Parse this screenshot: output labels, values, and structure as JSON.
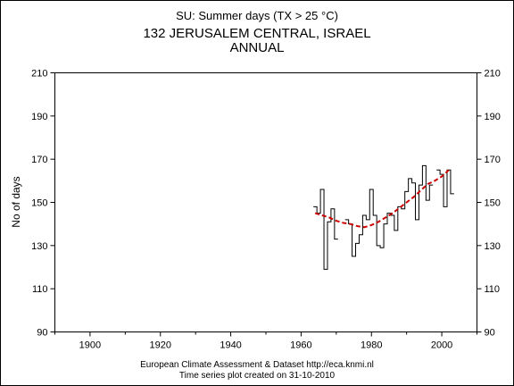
{
  "chart_data": {
    "type": "line",
    "title": "SU: Summer days (TX > 25 °C)",
    "subtitle_lines": [
      "132 JERUSALEM CENTRAL, ISRAEL",
      "ANNUAL"
    ],
    "ylabel": "No of days",
    "xlim": [
      1890,
      2010
    ],
    "ylim": [
      90,
      210
    ],
    "x_ticks": [
      1900,
      1920,
      1940,
      1960,
      1980,
      2000
    ],
    "y_ticks": [
      90,
      110,
      130,
      150,
      170,
      190,
      210
    ],
    "grid": false,
    "series": [
      {
        "kind": "step",
        "color": "#000000",
        "points": [
          [
            1964,
            148
          ],
          [
            1965,
            145
          ],
          [
            1966,
            156
          ],
          [
            1967,
            119
          ],
          [
            1968,
            141
          ],
          [
            1969,
            147
          ],
          [
            1970,
            133
          ],
          [
            1973,
            142
          ],
          [
            1974,
            140
          ],
          [
            1975,
            125
          ],
          [
            1976,
            131
          ],
          [
            1977,
            135
          ],
          [
            1978,
            144
          ],
          [
            1979,
            142
          ],
          [
            1980,
            156
          ],
          [
            1981,
            144
          ],
          [
            1982,
            130
          ],
          [
            1983,
            129
          ],
          [
            1984,
            140
          ],
          [
            1985,
            145
          ],
          [
            1986,
            144
          ],
          [
            1987,
            137
          ],
          [
            1988,
            148
          ],
          [
            1989,
            147
          ],
          [
            1990,
            155
          ],
          [
            1991,
            161
          ],
          [
            1992,
            159
          ],
          [
            1993,
            142
          ],
          [
            1994,
            158
          ],
          [
            1995,
            167
          ],
          [
            1996,
            151
          ],
          [
            1997,
            158
          ],
          [
            1999,
            165
          ],
          [
            2000,
            163
          ],
          [
            2001,
            148
          ],
          [
            2002,
            165
          ],
          [
            2003,
            154
          ]
        ]
      },
      {
        "kind": "smooth-trend",
        "color": "#cc0000",
        "points": [
          [
            1964,
            145
          ],
          [
            1966,
            144
          ],
          [
            1968,
            143
          ],
          [
            1970,
            141.5
          ],
          [
            1972,
            140.5
          ],
          [
            1974,
            140
          ],
          [
            1976,
            139
          ],
          [
            1978,
            138.5
          ],
          [
            1980,
            139.5
          ],
          [
            1982,
            141
          ],
          [
            1984,
            143
          ],
          [
            1986,
            145
          ],
          [
            1988,
            147.5
          ],
          [
            1990,
            150
          ],
          [
            1992,
            152.5
          ],
          [
            1994,
            155.5
          ],
          [
            1996,
            158.5
          ],
          [
            1998,
            160
          ],
          [
            2000,
            162
          ],
          [
            2002,
            165
          ]
        ]
      }
    ],
    "footer_lines": [
      "European Climate Assessment & Dataset  http://eca.knmi.nl",
      "Time series plot created on 31-10-2010"
    ]
  }
}
